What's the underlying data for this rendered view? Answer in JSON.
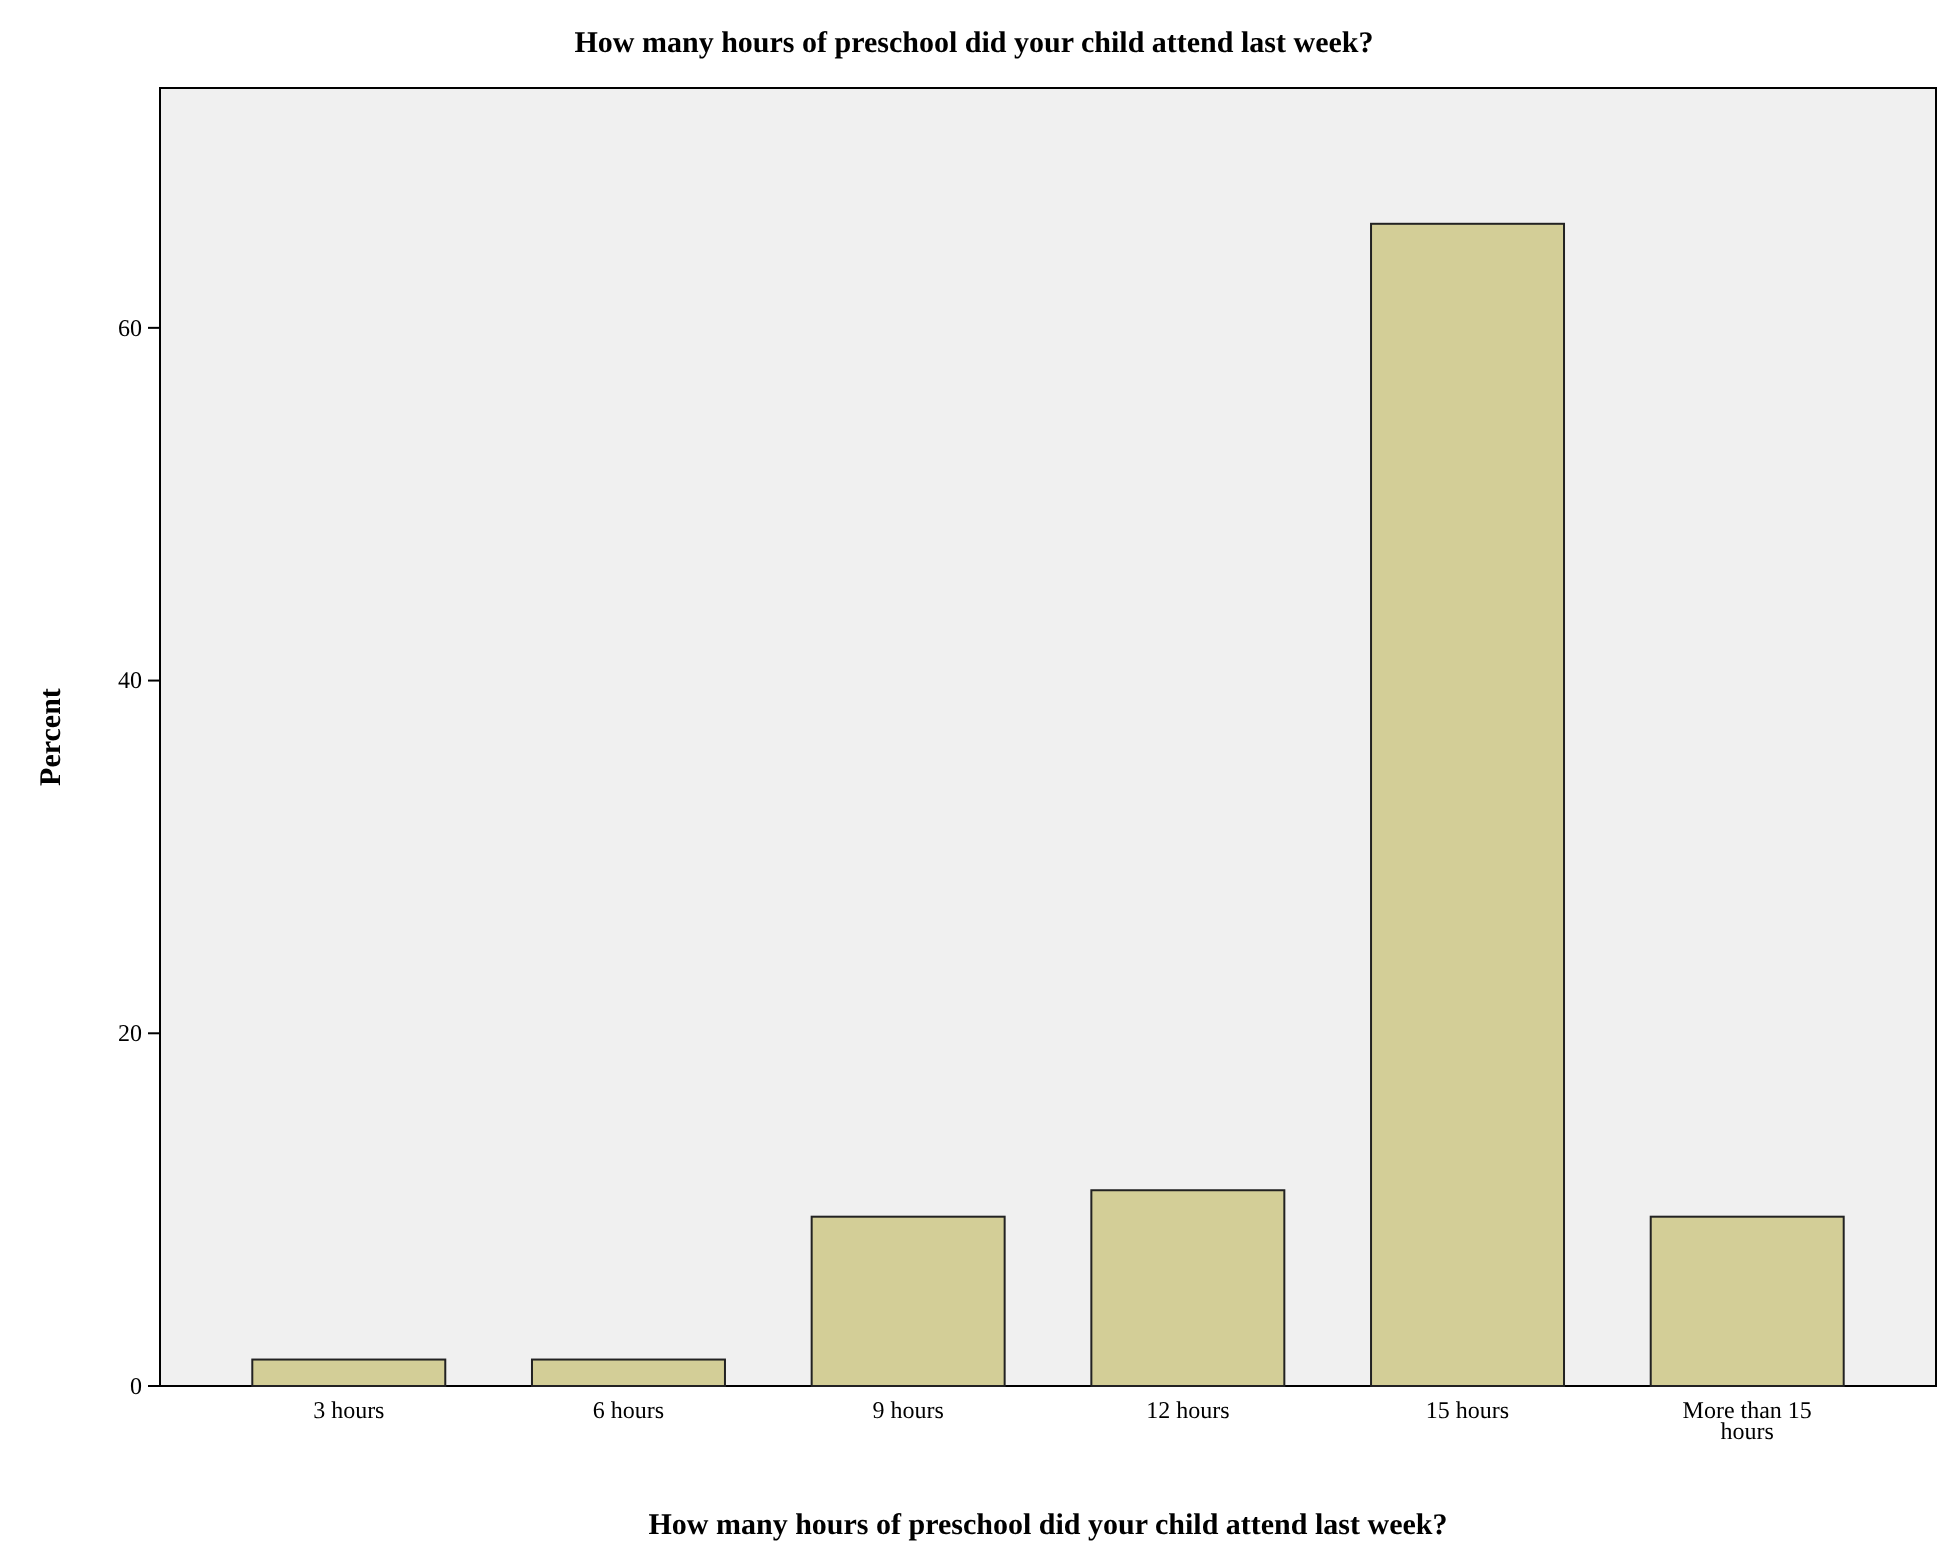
{
  "chart_data": {
    "type": "bar",
    "title": "How many hours of preschool did your child attend last week?",
    "xlabel": "How many hours of preschool did your child attend last week?",
    "ylabel": "Percent",
    "categories": [
      "3 hours",
      "6 hours",
      "9 hours",
      "12 hours",
      "15 hours",
      "More than 15 hours"
    ],
    "values": [
      1.5,
      1.5,
      9.6,
      11.1,
      65.9,
      9.6
    ],
    "color": "#d3ce97",
    "ylim": [
      0,
      73.6
    ],
    "yticks": [
      0,
      20,
      40,
      60
    ],
    "grid": false
  }
}
